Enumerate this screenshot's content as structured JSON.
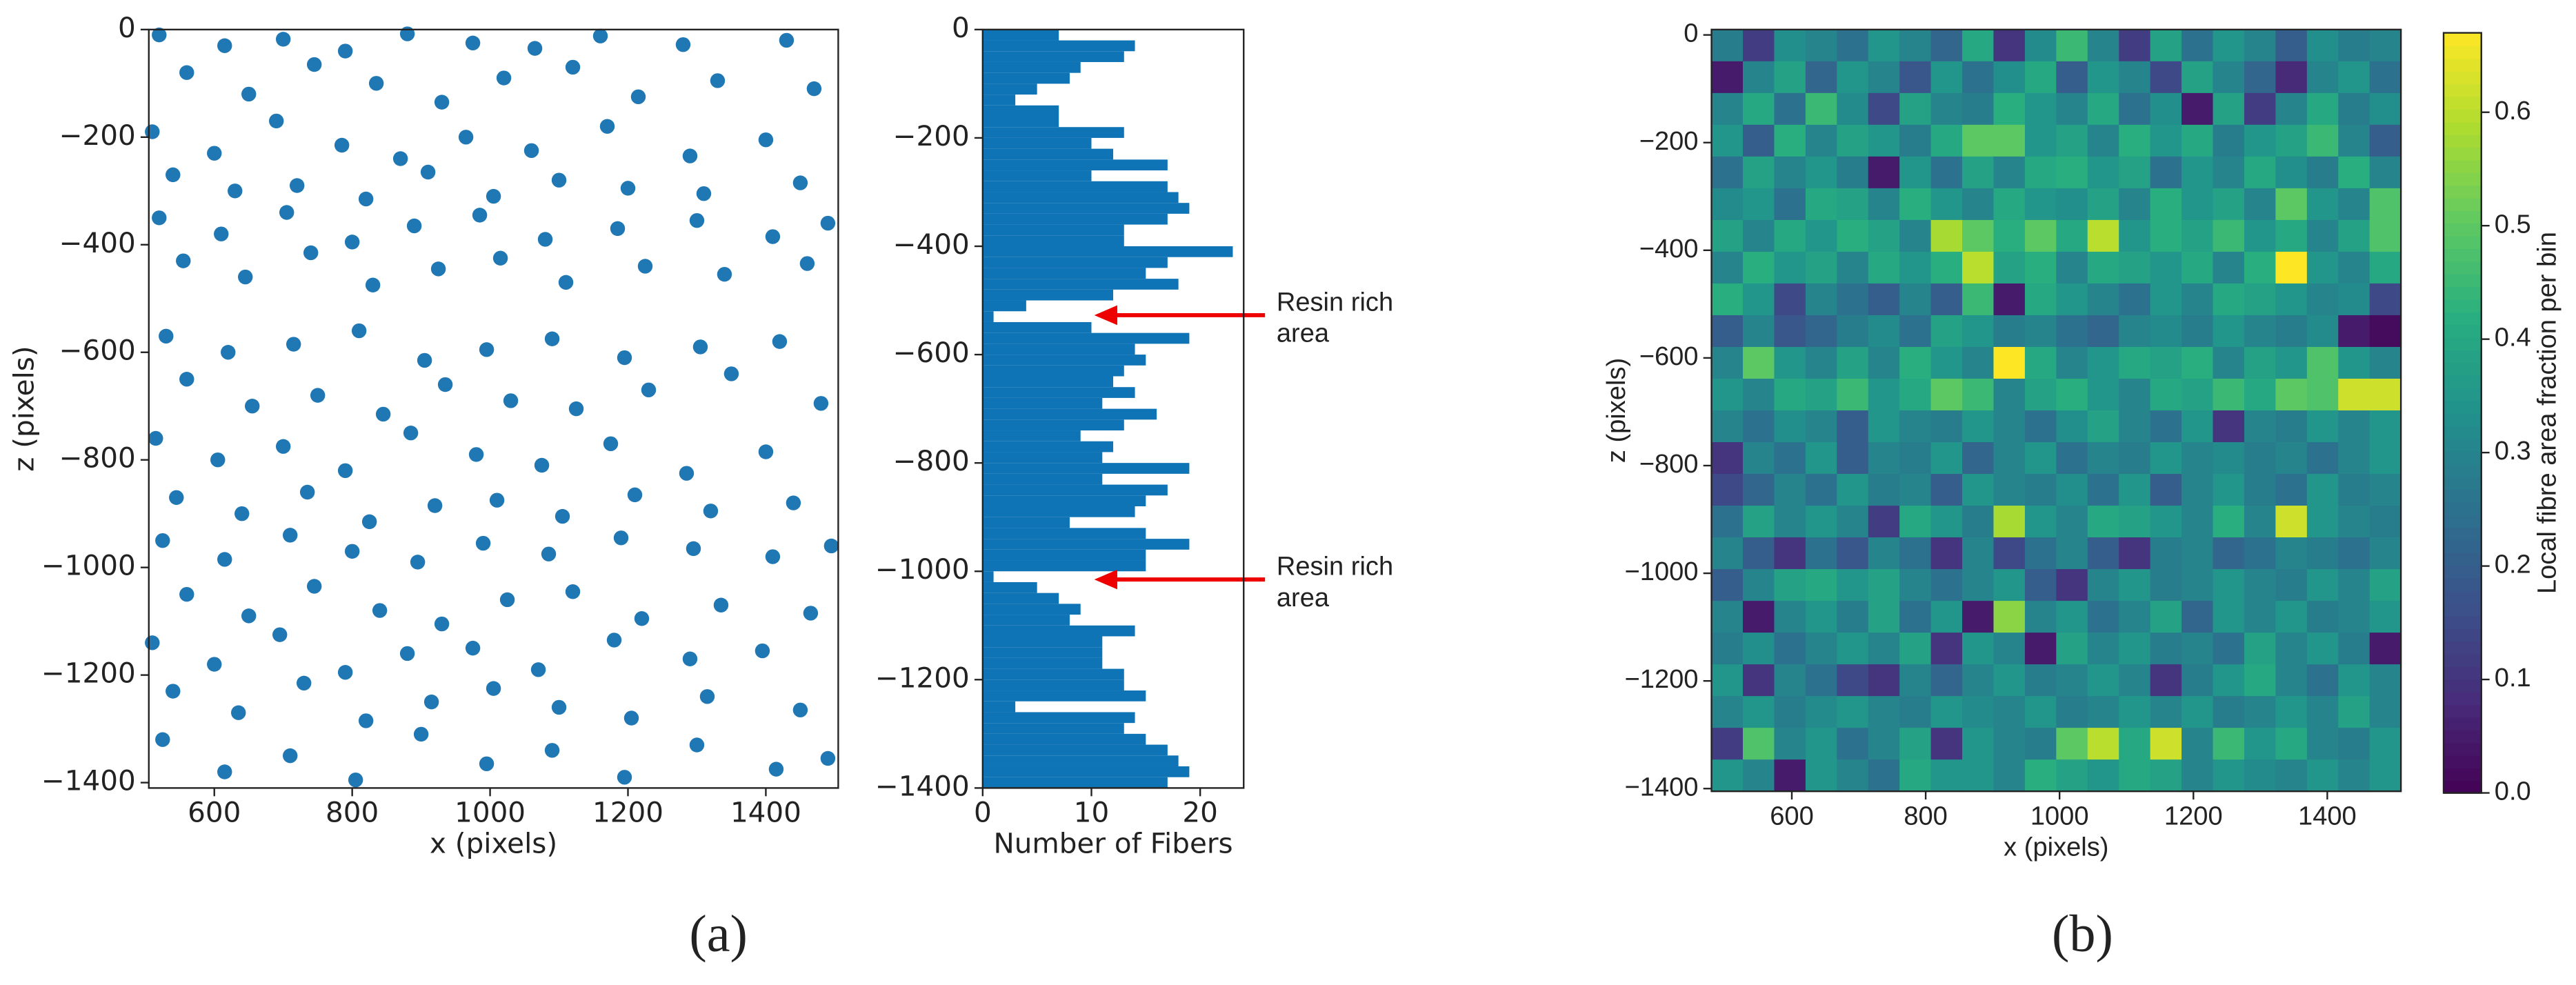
{
  "chart_data": [
    {
      "type": "scatter",
      "xlabel": "x (pixels)",
      "ylabel": "z (pixels)",
      "color": "#1f77b4",
      "xlim": [
        505,
        1505
      ],
      "ylim": [
        -1410,
        0
      ],
      "xticks": [
        600,
        800,
        1000,
        1200,
        1400
      ],
      "yticks": [
        {
          "value": 0,
          "label": "0"
        },
        {
          "value": -200,
          "label": "−200"
        },
        {
          "value": -400,
          "label": "−400"
        },
        {
          "value": -600,
          "label": "−600"
        },
        {
          "value": -800,
          "label": "−800"
        },
        {
          "value": -1000,
          "label": "−1000"
        },
        {
          "value": -1200,
          "label": "−1200"
        },
        {
          "value": -1400,
          "label": "−1400"
        }
      ],
      "x": [
        520,
        615,
        700,
        790,
        880,
        975,
        1065,
        1160,
        1280,
        1430,
        560,
        650,
        745,
        835,
        930,
        1020,
        1120,
        1215,
        1330,
        1470,
        510,
        600,
        690,
        785,
        870,
        965,
        1060,
        1170,
        1290,
        1400,
        540,
        630,
        720,
        820,
        910,
        1005,
        1100,
        1200,
        1310,
        1450,
        520,
        610,
        705,
        800,
        890,
        985,
        1080,
        1185,
        1300,
        1410,
        1490,
        555,
        645,
        740,
        830,
        925,
        1015,
        1110,
        1225,
        1340,
        1460,
        530,
        620,
        715,
        810,
        905,
        995,
        1090,
        1195,
        1305,
        1420,
        560,
        655,
        750,
        845,
        935,
        1030,
        1125,
        1230,
        1350,
        1480,
        515,
        605,
        700,
        790,
        885,
        980,
        1075,
        1175,
        1285,
        1400,
        545,
        640,
        735,
        825,
        920,
        1010,
        1105,
        1210,
        1320,
        1440,
        525,
        615,
        710,
        800,
        895,
        990,
        1085,
        1190,
        1295,
        1410,
        1495,
        560,
        650,
        745,
        840,
        930,
        1025,
        1120,
        1220,
        1335,
        1465,
        510,
        600,
        695,
        790,
        880,
        975,
        1070,
        1180,
        1290,
        1395,
        540,
        635,
        730,
        820,
        915,
        1005,
        1100,
        1205,
        1315,
        1450,
        525,
        615,
        710,
        805,
        900,
        995,
        1090,
        1195,
        1300,
        1415,
        1490
      ],
      "values": [
        -10,
        -30,
        -18,
        -40,
        -8,
        -25,
        -35,
        -12,
        -28,
        -20,
        -80,
        -120,
        -65,
        -100,
        -135,
        -90,
        -70,
        -125,
        -95,
        -110,
        -190,
        -230,
        -170,
        -215,
        -240,
        -200,
        -225,
        -180,
        -235,
        -205,
        -270,
        -300,
        -290,
        -315,
        -265,
        -310,
        -280,
        -295,
        -305,
        -285,
        -350,
        -380,
        -340,
        -395,
        -365,
        -345,
        -390,
        -370,
        -355,
        -385,
        -360,
        -430,
        -460,
        -415,
        -475,
        -445,
        -425,
        -470,
        -440,
        -455,
        -435,
        -570,
        -600,
        -585,
        -560,
        -615,
        -595,
        -575,
        -610,
        -590,
        -580,
        -650,
        -700,
        -680,
        -715,
        -660,
        -690,
        -705,
        -670,
        -640,
        -695,
        -760,
        -800,
        -775,
        -820,
        -750,
        -790,
        -810,
        -770,
        -825,
        -785,
        -870,
        -900,
        -860,
        -915,
        -885,
        -875,
        -905,
        -865,
        -895,
        -880,
        -950,
        -985,
        -940,
        -970,
        -990,
        -955,
        -975,
        -945,
        -965,
        -980,
        -960,
        -1050,
        -1090,
        -1035,
        -1080,
        -1105,
        -1060,
        -1045,
        -1095,
        -1070,
        -1085,
        -1140,
        -1180,
        -1125,
        -1195,
        -1160,
        -1150,
        -1190,
        -1135,
        -1170,
        -1155,
        -1230,
        -1270,
        -1215,
        -1285,
        -1250,
        -1225,
        -1260,
        -1280,
        -1240,
        -1265,
        -1320,
        -1380,
        -1350,
        -1395,
        -1310,
        -1365,
        -1340,
        -1390,
        -1330,
        -1375,
        -1355
      ]
    },
    {
      "type": "histogram",
      "xlabel": "Number of Fibers",
      "color": "#0f74b5",
      "xlim": [
        0,
        24
      ],
      "xticks": [
        0,
        10,
        20
      ],
      "ylim": [
        -1400,
        0
      ],
      "yticks": [
        {
          "value": 0,
          "label": "0"
        },
        {
          "value": -200,
          "label": "−200"
        },
        {
          "value": -400,
          "label": "−400"
        },
        {
          "value": -600,
          "label": "−600"
        },
        {
          "value": -800,
          "label": "−800"
        },
        {
          "value": -1000,
          "label": "−1000"
        },
        {
          "value": -1200,
          "label": "−1200"
        },
        {
          "value": -1400,
          "label": "−1400"
        }
      ],
      "bins": [
        0,
        -20,
        -40,
        -60,
        -80,
        -100,
        -120,
        -140,
        -160,
        -180,
        -200,
        -220,
        -240,
        -260,
        -280,
        -300,
        -320,
        -340,
        -360,
        -380,
        -400,
        -420,
        -440,
        -460,
        -480,
        -500,
        -520,
        -540,
        -560,
        -580,
        -600,
        -620,
        -640,
        -660,
        -680,
        -700,
        -720,
        -740,
        -760,
        -780,
        -800,
        -820,
        -840,
        -860,
        -880,
        -900,
        -920,
        -940,
        -960,
        -980,
        -1000,
        -1020,
        -1040,
        -1060,
        -1080,
        -1100,
        -1120,
        -1140,
        -1160,
        -1180,
        -1200,
        -1220,
        -1240,
        -1260,
        -1280,
        -1300,
        -1320,
        -1340,
        -1360,
        -1380,
        -1400
      ],
      "values": [
        7,
        14,
        13,
        9,
        8,
        5,
        3,
        7,
        7,
        13,
        10,
        12,
        17,
        10,
        17,
        18,
        19,
        17,
        13,
        13,
        23,
        17,
        15,
        18,
        12,
        4,
        1,
        10,
        19,
        14,
        15,
        13,
        12,
        14,
        11,
        16,
        13,
        9,
        12,
        11,
        19,
        11,
        17,
        15,
        14,
        8,
        15,
        19,
        15,
        15,
        1,
        5,
        7,
        9,
        8,
        14,
        11,
        11,
        11,
        13,
        13,
        15,
        3,
        14,
        13,
        15,
        17,
        18,
        19,
        17
      ],
      "annotations": [
        [
          "Resin rich",
          "area"
        ],
        [
          "Resin rich",
          "area"
        ]
      ]
    },
    {
      "type": "heatmap",
      "xlabel": "x (pixels)",
      "ylabel": "z (pixels)",
      "colormap": "viridis",
      "xlim": [
        480,
        1510
      ],
      "ylim": [
        -1405,
        10
      ],
      "xticks": [
        600,
        800,
        1000,
        1200,
        1400
      ],
      "yticks": [
        {
          "value": 0,
          "label": "0"
        },
        {
          "value": -200,
          "label": "−200"
        },
        {
          "value": -400,
          "label": "−400"
        },
        {
          "value": -600,
          "label": "−600"
        },
        {
          "value": -800,
          "label": "−800"
        },
        {
          "value": -1000,
          "label": "−1000"
        },
        {
          "value": -1200,
          "label": "−1200"
        },
        {
          "value": -1400,
          "label": "−1400"
        }
      ],
      "values": [
        [
          0.28,
          0.12,
          0.33,
          0.3,
          0.25,
          0.35,
          0.3,
          0.22,
          0.4,
          0.1,
          0.32,
          0.45,
          0.3,
          0.12,
          0.38,
          0.25,
          0.35,
          0.3,
          0.2,
          0.33,
          0.28,
          0.3
        ],
        [
          0.05,
          0.3,
          0.38,
          0.22,
          0.35,
          0.3,
          0.18,
          0.35,
          0.25,
          0.33,
          0.4,
          0.2,
          0.35,
          0.3,
          0.15,
          0.38,
          0.3,
          0.22,
          0.08,
          0.3,
          0.35,
          0.25
        ],
        [
          0.3,
          0.4,
          0.25,
          0.45,
          0.32,
          0.15,
          0.38,
          0.3,
          0.28,
          0.42,
          0.35,
          0.3,
          0.4,
          0.25,
          0.33,
          0.05,
          0.38,
          0.12,
          0.3,
          0.4,
          0.28,
          0.33
        ],
        [
          0.35,
          0.2,
          0.42,
          0.3,
          0.38,
          0.35,
          0.28,
          0.4,
          0.5,
          0.5,
          0.35,
          0.38,
          0.3,
          0.42,
          0.35,
          0.4,
          0.28,
          0.35,
          0.38,
          0.45,
          0.3,
          0.2
        ],
        [
          0.25,
          0.38,
          0.3,
          0.35,
          0.28,
          0.05,
          0.35,
          0.25,
          0.38,
          0.3,
          0.4,
          0.42,
          0.35,
          0.38,
          0.25,
          0.35,
          0.3,
          0.4,
          0.33,
          0.28,
          0.42,
          0.3
        ],
        [
          0.32,
          0.35,
          0.25,
          0.4,
          0.38,
          0.3,
          0.42,
          0.35,
          0.3,
          0.4,
          0.35,
          0.33,
          0.38,
          0.3,
          0.42,
          0.35,
          0.38,
          0.3,
          0.5,
          0.35,
          0.3,
          0.48
        ],
        [
          0.38,
          0.3,
          0.4,
          0.35,
          0.42,
          0.38,
          0.3,
          0.58,
          0.5,
          0.42,
          0.5,
          0.4,
          0.6,
          0.35,
          0.42,
          0.38,
          0.45,
          0.35,
          0.4,
          0.3,
          0.38,
          0.48
        ],
        [
          0.3,
          0.42,
          0.35,
          0.38,
          0.3,
          0.4,
          0.35,
          0.42,
          0.6,
          0.38,
          0.42,
          0.3,
          0.4,
          0.38,
          0.35,
          0.4,
          0.3,
          0.42,
          0.67,
          0.35,
          0.3,
          0.4
        ],
        [
          0.42,
          0.35,
          0.15,
          0.3,
          0.25,
          0.2,
          0.3,
          0.2,
          0.45,
          0.05,
          0.4,
          0.35,
          0.3,
          0.25,
          0.35,
          0.3,
          0.4,
          0.38,
          0.35,
          0.3,
          0.32,
          0.15
        ],
        [
          0.2,
          0.3,
          0.18,
          0.22,
          0.28,
          0.32,
          0.25,
          0.38,
          0.35,
          0.28,
          0.3,
          0.25,
          0.22,
          0.3,
          0.32,
          0.28,
          0.35,
          0.3,
          0.28,
          0.32,
          0.05,
          0.02
        ],
        [
          0.3,
          0.5,
          0.35,
          0.3,
          0.38,
          0.3,
          0.42,
          0.35,
          0.3,
          0.67,
          0.4,
          0.3,
          0.35,
          0.4,
          0.38,
          0.42,
          0.3,
          0.38,
          0.35,
          0.48,
          0.35,
          0.3
        ],
        [
          0.35,
          0.3,
          0.4,
          0.38,
          0.45,
          0.35,
          0.4,
          0.5,
          0.45,
          0.3,
          0.38,
          0.42,
          0.35,
          0.3,
          0.4,
          0.38,
          0.45,
          0.4,
          0.5,
          0.48,
          0.62,
          0.62
        ],
        [
          0.3,
          0.25,
          0.33,
          0.3,
          0.2,
          0.35,
          0.3,
          0.28,
          0.35,
          0.3,
          0.25,
          0.33,
          0.38,
          0.3,
          0.25,
          0.35,
          0.1,
          0.3,
          0.28,
          0.35,
          0.3,
          0.35
        ],
        [
          0.1,
          0.3,
          0.25,
          0.35,
          0.2,
          0.3,
          0.28,
          0.35,
          0.22,
          0.3,
          0.35,
          0.25,
          0.3,
          0.28,
          0.35,
          0.3,
          0.32,
          0.28,
          0.3,
          0.25,
          0.3,
          0.35
        ],
        [
          0.15,
          0.22,
          0.3,
          0.25,
          0.35,
          0.28,
          0.3,
          0.2,
          0.35,
          0.3,
          0.28,
          0.33,
          0.25,
          0.35,
          0.2,
          0.3,
          0.35,
          0.28,
          0.25,
          0.35,
          0.28,
          0.3
        ],
        [
          0.25,
          0.38,
          0.3,
          0.35,
          0.3,
          0.12,
          0.4,
          0.35,
          0.28,
          0.58,
          0.35,
          0.3,
          0.4,
          0.38,
          0.35,
          0.3,
          0.42,
          0.3,
          0.62,
          0.35,
          0.3,
          0.28
        ],
        [
          0.3,
          0.2,
          0.1,
          0.25,
          0.18,
          0.3,
          0.25,
          0.1,
          0.3,
          0.15,
          0.25,
          0.3,
          0.2,
          0.1,
          0.28,
          0.3,
          0.22,
          0.25,
          0.3,
          0.28,
          0.25,
          0.3
        ],
        [
          0.2,
          0.3,
          0.38,
          0.4,
          0.35,
          0.38,
          0.3,
          0.25,
          0.3,
          0.35,
          0.2,
          0.1,
          0.3,
          0.35,
          0.28,
          0.3,
          0.35,
          0.3,
          0.28,
          0.35,
          0.3,
          0.38
        ],
        [
          0.3,
          0.05,
          0.3,
          0.35,
          0.28,
          0.38,
          0.25,
          0.35,
          0.05,
          0.55,
          0.3,
          0.35,
          0.25,
          0.3,
          0.38,
          0.22,
          0.35,
          0.3,
          0.35,
          0.28,
          0.3,
          0.35
        ],
        [
          0.28,
          0.33,
          0.25,
          0.3,
          0.35,
          0.3,
          0.38,
          0.1,
          0.35,
          0.3,
          0.05,
          0.38,
          0.3,
          0.35,
          0.28,
          0.3,
          0.25,
          0.38,
          0.3,
          0.35,
          0.28,
          0.05
        ],
        [
          0.35,
          0.1,
          0.3,
          0.25,
          0.15,
          0.1,
          0.3,
          0.22,
          0.3,
          0.35,
          0.28,
          0.3,
          0.35,
          0.3,
          0.1,
          0.28,
          0.35,
          0.4,
          0.3,
          0.25,
          0.35,
          0.3
        ],
        [
          0.3,
          0.35,
          0.28,
          0.32,
          0.35,
          0.3,
          0.28,
          0.35,
          0.32,
          0.3,
          0.35,
          0.28,
          0.3,
          0.35,
          0.3,
          0.35,
          0.28,
          0.3,
          0.35,
          0.3,
          0.38,
          0.3
        ],
        [
          0.12,
          0.48,
          0.3,
          0.35,
          0.25,
          0.3,
          0.38,
          0.1,
          0.35,
          0.3,
          0.28,
          0.5,
          0.6,
          0.4,
          0.62,
          0.3,
          0.45,
          0.35,
          0.4,
          0.3,
          0.28,
          0.35
        ],
        [
          0.35,
          0.3,
          0.05,
          0.35,
          0.3,
          0.25,
          0.4,
          0.35,
          0.35,
          0.3,
          0.42,
          0.38,
          0.35,
          0.4,
          0.38,
          0.3,
          0.35,
          0.32,
          0.3,
          0.35,
          0.3,
          0.35
        ]
      ],
      "colorbar": {
        "label": "Local fibre area fraction per bin",
        "lim": [
          0,
          0.67
        ],
        "ticks": [
          {
            "value": 0,
            "label": "0.0"
          },
          0.1,
          0.2,
          0.3,
          0.4,
          0.5,
          0.6
        ]
      }
    }
  ],
  "captions": [
    "(a)",
    "(b)"
  ]
}
